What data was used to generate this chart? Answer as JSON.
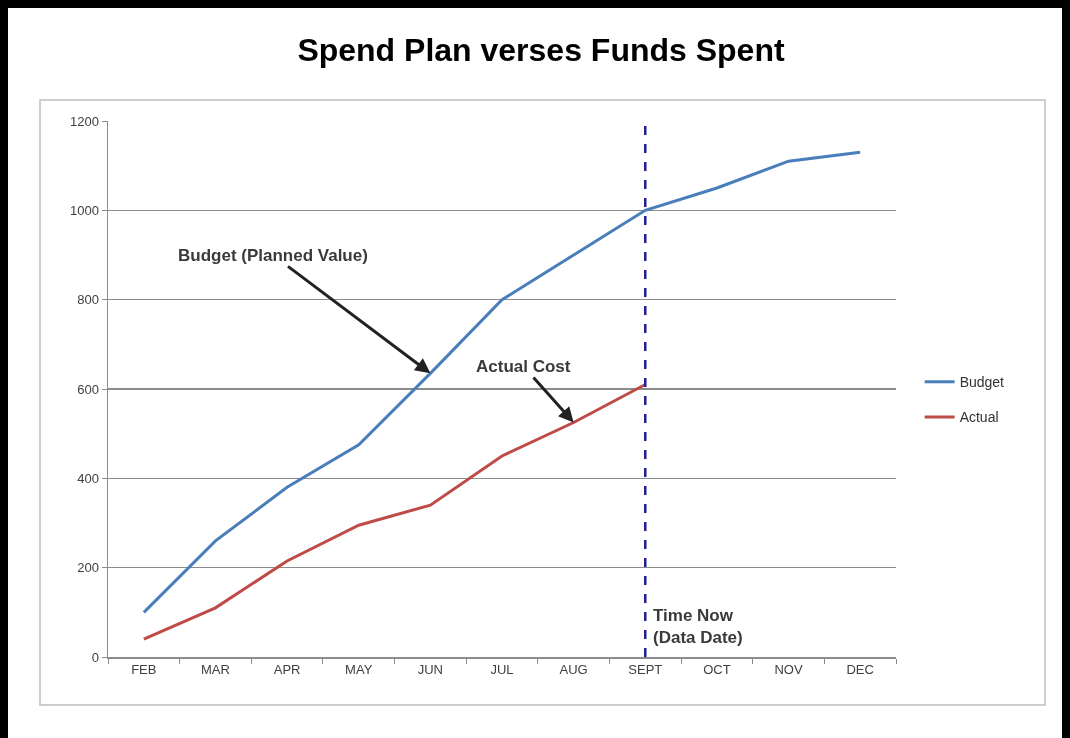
{
  "chart_data": {
    "type": "line",
    "title": "Spend Plan verses Funds Spent",
    "categories": [
      "FEB",
      "MAR",
      "APR",
      "MAY",
      "JUN",
      "JUL",
      "AUG",
      "SEPT",
      "OCT",
      "NOV",
      "DEC"
    ],
    "series": [
      {
        "name": "Budget",
        "color": "#4a7ebb",
        "values": [
          100,
          260,
          380,
          475,
          635,
          800,
          900,
          1000,
          1050,
          1110,
          1130
        ]
      },
      {
        "name": "Actual",
        "color": "#be4b48",
        "values": [
          40,
          110,
          215,
          295,
          340,
          450,
          525,
          610,
          null,
          null,
          null
        ]
      }
    ],
    "ylim": [
      0,
      1200
    ],
    "yticks": [
      0,
      200,
      400,
      600,
      800,
      1000,
      1200
    ],
    "grid": "y",
    "legend": "right",
    "ref_lines": [
      {
        "axis": "x",
        "value": "SEPT",
        "label": "Time Now\n(Data Date)",
        "color": "#1f1f8f",
        "line_style": "dashed"
      }
    ],
    "annotations": [
      {
        "text": "Budget (Planned Value)",
        "x": "JUN",
        "y": 635
      },
      {
        "text": "Actual Cost",
        "x": "AUG",
        "y": 525
      }
    ]
  }
}
